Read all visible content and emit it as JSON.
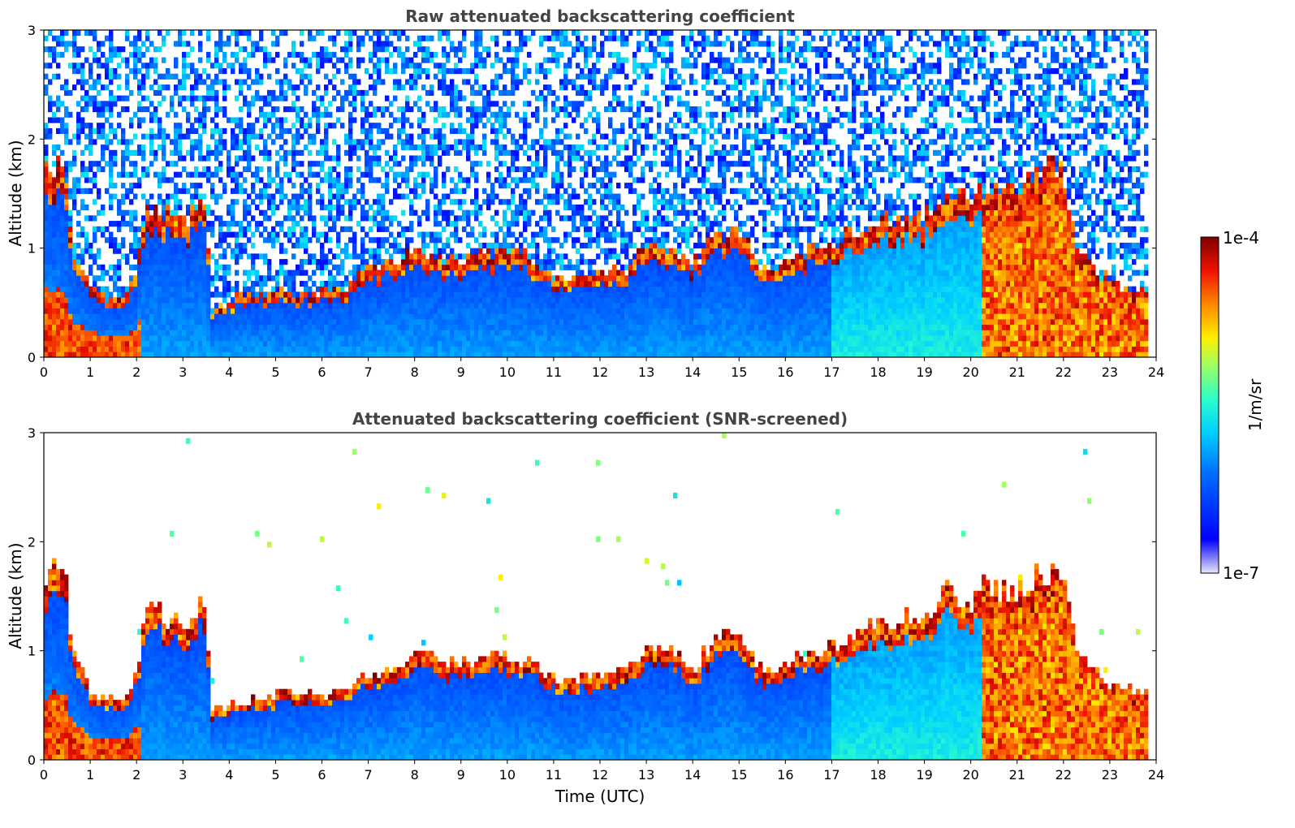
{
  "chart_data": [
    {
      "type": "heatmap",
      "title": "Raw attenuated backscattering coefficient",
      "xlabel": "",
      "ylabel": "Altitude (km)",
      "xlim": [
        0,
        24
      ],
      "ylim": [
        0,
        3
      ],
      "x_ticks": [
        "0",
        "1",
        "2",
        "3",
        "4",
        "5",
        "6",
        "7",
        "8",
        "9",
        "10",
        "11",
        "12",
        "13",
        "14",
        "15",
        "16",
        "17",
        "18",
        "19",
        "20",
        "21",
        "22",
        "23",
        "24"
      ],
      "y_ticks": [
        "0",
        "1",
        "2",
        "3"
      ],
      "variant": "raw"
    },
    {
      "type": "heatmap",
      "title": "Attenuated backscattering coefficient (SNR-screened)",
      "xlabel": "Time (UTC)",
      "ylabel": "Altitude (km)",
      "xlim": [
        0,
        24
      ],
      "ylim": [
        0,
        3
      ],
      "x_ticks": [
        "0",
        "1",
        "2",
        "3",
        "4",
        "5",
        "6",
        "7",
        "8",
        "9",
        "10",
        "11",
        "12",
        "13",
        "14",
        "15",
        "16",
        "17",
        "18",
        "19",
        "20",
        "21",
        "22",
        "23",
        "24"
      ],
      "y_ticks": [
        "0",
        "1",
        "2",
        "3"
      ],
      "variant": "screened"
    }
  ],
  "colorbar": {
    "label": "1/m/sr",
    "max_label": "1e-4",
    "min_label": "1e-7",
    "scale": "log",
    "range": [
      1e-07,
      0.0001
    ]
  },
  "layer_profile": {
    "hours": [
      0,
      0.5,
      0.6,
      1,
      1.4,
      1.8,
      2.0,
      2.2,
      2.4,
      2.6,
      3.0,
      3.5,
      3.6,
      4.0,
      4.2,
      5,
      6,
      6.5,
      7,
      8,
      9,
      10,
      10.5,
      11,
      12,
      12.5,
      13,
      13.5,
      14,
      14.5,
      15,
      15.5,
      16,
      17,
      18,
      19,
      19.5,
      20,
      20.3,
      21,
      21.5,
      22,
      22.3,
      23,
      23.8
    ],
    "top_km": [
      1.75,
      1.7,
      1.0,
      0.65,
      0.55,
      0.6,
      0.8,
      1.3,
      1.45,
      1.3,
      1.25,
      1.45,
      0.45,
      0.5,
      0.55,
      0.6,
      0.6,
      0.65,
      0.8,
      0.95,
      0.9,
      0.95,
      0.9,
      0.75,
      0.75,
      0.8,
      1.0,
      1.0,
      0.85,
      1.1,
      1.2,
      0.8,
      0.9,
      1.05,
      1.25,
      1.3,
      1.55,
      1.4,
      1.6,
      1.5,
      1.7,
      1.75,
      0.95,
      0.7,
      0.6
    ]
  },
  "colors": {
    "jet_low": "#00008f",
    "jet_high": "#800000",
    "title_color": "#444444"
  }
}
